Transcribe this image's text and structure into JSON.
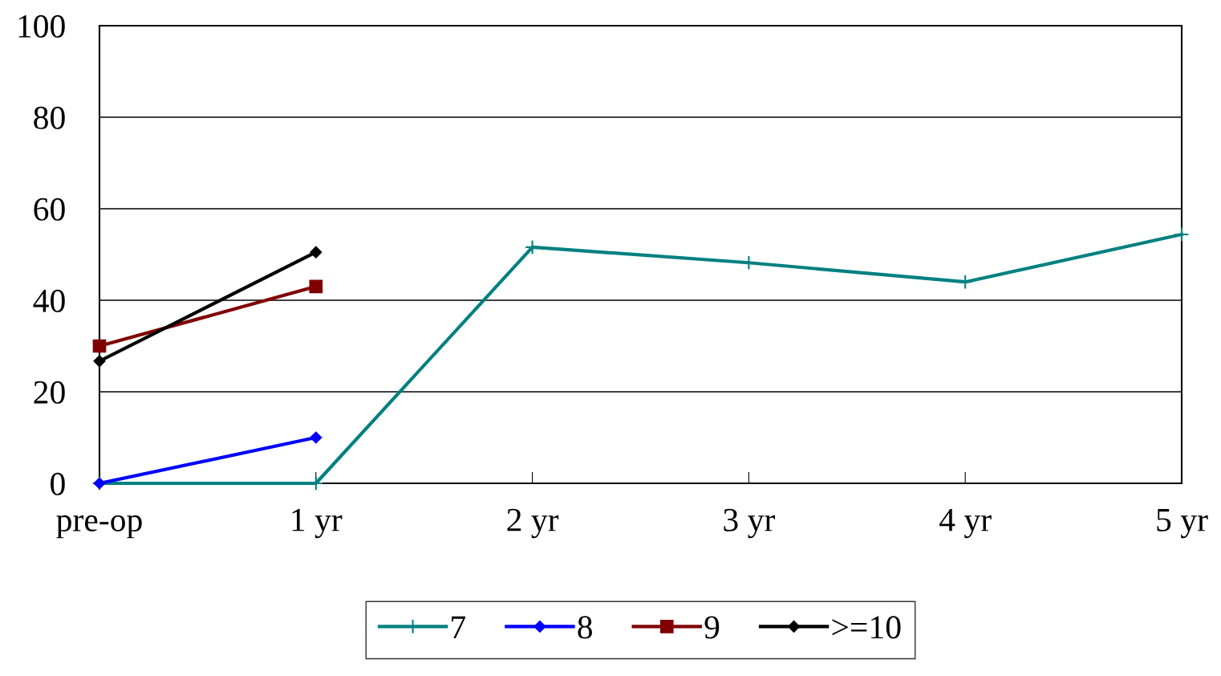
{
  "chart_data": {
    "type": "line",
    "categories": [
      "pre-op",
      "1 yr",
      "2 yr",
      "3 yr",
      "4 yr",
      "5 yr"
    ],
    "series": [
      {
        "name": "7",
        "color": "#008080",
        "marker": "cross",
        "values": [
          0,
          0,
          51.6,
          48.2,
          44.0,
          54.4
        ]
      },
      {
        "name": "8",
        "color": "#0000ff",
        "marker": "diamond",
        "values": [
          0,
          10,
          null,
          null,
          null,
          null
        ]
      },
      {
        "name": "9",
        "color": "#800000",
        "marker": "square",
        "values": [
          30,
          43,
          null,
          null,
          null,
          null
        ]
      },
      {
        "name": ">=10",
        "color": "#000000",
        "marker": "diamond",
        "values": [
          26.7,
          50.5,
          null,
          null,
          null,
          null
        ]
      }
    ],
    "ylim": [
      0,
      100
    ],
    "yticks": [
      0,
      20,
      40,
      60,
      80,
      100
    ],
    "grid": "y",
    "legend": "bottom",
    "line_style": "solid"
  }
}
